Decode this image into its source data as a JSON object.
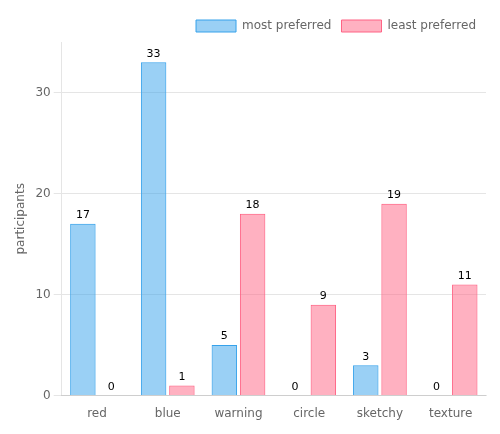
{
  "chart_data": {
    "type": "bar",
    "categories": [
      "red",
      "blue",
      "warning",
      "circle",
      "sketchy",
      "texture"
    ],
    "series": [
      {
        "name": "most preferred",
        "values": [
          17,
          33,
          5,
          0,
          3,
          0
        ]
      },
      {
        "name": "least preferred",
        "values": [
          0,
          1,
          18,
          9,
          19,
          11
        ]
      }
    ],
    "ylabel": "participants",
    "ylim": [
      0,
      35
    ],
    "yticks": [
      0,
      10,
      20,
      30
    ],
    "grid": true,
    "legend": "upper right",
    "data_labels": true
  }
}
